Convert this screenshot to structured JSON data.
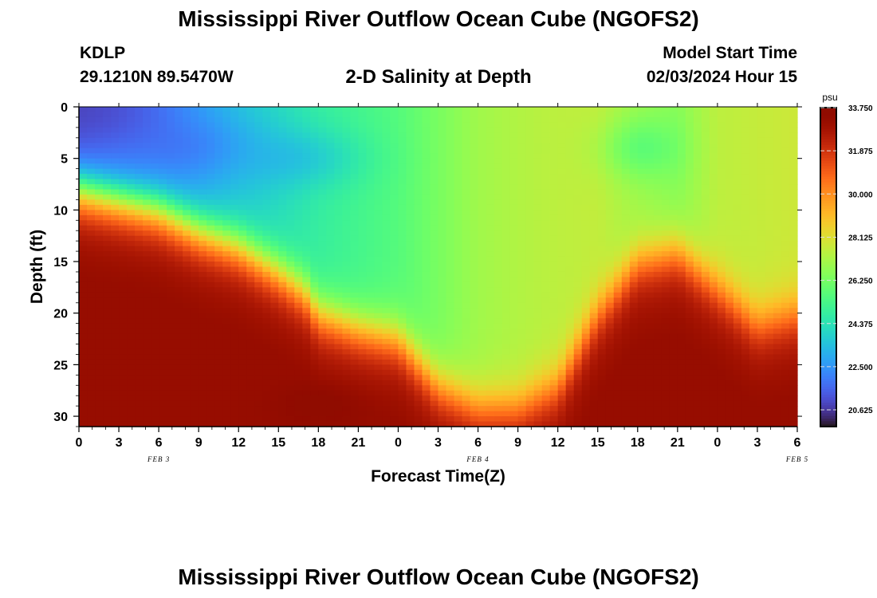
{
  "header": {
    "title": "Mississippi River Outflow Ocean Cube (NGOFS2)",
    "station_id": "KDLP",
    "coordinates": "29.1210N  89.5470W",
    "subtitle": "2-D Salinity at Depth",
    "model_start_label": "Model Start Time",
    "model_start_value": "02/03/2024 Hour 15"
  },
  "footer": {
    "title": "Mississippi River Outflow Ocean Cube (NGOFS2)"
  },
  "chart_data": {
    "type": "heatmap",
    "title": "2-D Salinity at Depth",
    "xlabel": "Forecast Time(Z)",
    "ylabel": "Depth (ft)",
    "x_tick_labels": [
      "0",
      "3",
      "6",
      "9",
      "12",
      "15",
      "18",
      "21",
      "0",
      "3",
      "6",
      "9",
      "12",
      "15",
      "18",
      "21",
      "0",
      "3",
      "6"
    ],
    "date_labels": [
      {
        "label": "FEB 3",
        "hour": 6
      },
      {
        "label": "FEB 4",
        "hour": 30
      },
      {
        "label": "FEB 5",
        "hour": 54
      }
    ],
    "y_ticks": [
      0,
      5,
      10,
      15,
      20,
      25,
      30
    ],
    "ylim": [
      0,
      31
    ],
    "y_inverted": true,
    "x_range_hours": [
      0,
      54
    ],
    "halocline_depth_ft": [
      [
        0,
        8
      ],
      [
        3,
        9
      ],
      [
        6,
        10
      ],
      [
        9,
        12
      ],
      [
        12,
        13.5
      ],
      [
        15,
        16
      ],
      [
        17,
        18
      ],
      [
        18,
        20
      ],
      [
        21,
        21.5
      ],
      [
        24,
        22.5
      ],
      [
        27,
        27
      ],
      [
        30,
        29
      ],
      [
        33,
        29
      ],
      [
        36,
        27
      ],
      [
        39,
        20
      ],
      [
        42,
        15
      ],
      [
        45,
        14
      ],
      [
        48,
        17.5
      ],
      [
        51,
        21
      ],
      [
        54,
        20
      ]
    ],
    "fresh_core": [
      {
        "hour": 8,
        "depth_ft": 4,
        "salinity": 21.5
      },
      {
        "hour": 1,
        "depth_ft": 0.5,
        "salinity": 20.8
      },
      {
        "hour": 16,
        "depth_ft": 5,
        "salinity": 22.8
      }
    ],
    "colorbar": {
      "unit": "psu",
      "min": 19.9,
      "max": 33.75,
      "tick_values": [
        33.75,
        31.875,
        30.0,
        28.125,
        26.25,
        24.375,
        22.5,
        20.625
      ],
      "tick_labels": [
        "33.750",
        "31.875",
        "30.000",
        "28.125",
        "26.250",
        "24.375",
        "22.500",
        "20.625"
      ],
      "colormap": "turbo"
    }
  }
}
